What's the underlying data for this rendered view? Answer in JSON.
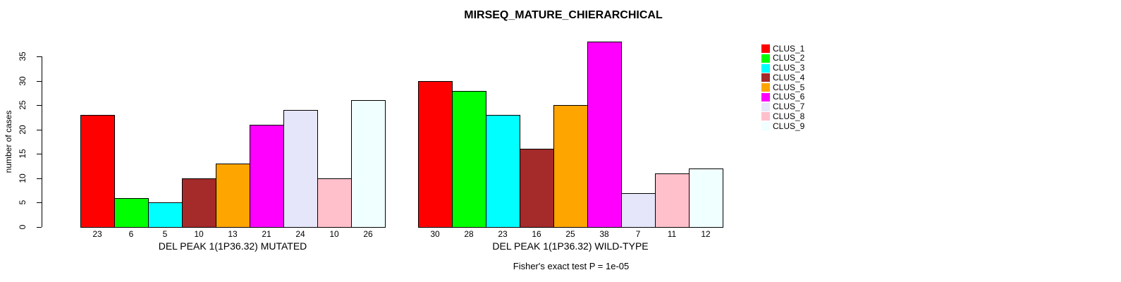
{
  "chart_data": {
    "type": "bar",
    "title": "MIRSEQ_MATURE_CHIERARCHICAL",
    "ylabel": "number of cases",
    "ylim": [
      0,
      38
    ],
    "yticks": [
      0,
      5,
      10,
      15,
      20,
      25,
      30,
      35
    ],
    "grid": false,
    "legend_position": "top-right",
    "categories": [
      "DEL PEAK 1(1P36.32) MUTATED",
      "DEL PEAK 1(1P36.32) WILD-TYPE"
    ],
    "series": [
      {
        "name": "CLUS_1",
        "color": "#FF0000",
        "values": [
          23,
          30
        ]
      },
      {
        "name": "CLUS_2",
        "color": "#00FF00",
        "values": [
          6,
          28
        ]
      },
      {
        "name": "CLUS_3",
        "color": "#00FFFF",
        "values": [
          5,
          23
        ]
      },
      {
        "name": "CLUS_4",
        "color": "#A52A2A",
        "values": [
          10,
          16
        ]
      },
      {
        "name": "CLUS_5",
        "color": "#FFA500",
        "values": [
          13,
          25
        ]
      },
      {
        "name": "CLUS_6",
        "color": "#FF00FF",
        "values": [
          21,
          38
        ]
      },
      {
        "name": "CLUS_7",
        "color": "#E6E6FA",
        "values": [
          24,
          7
        ]
      },
      {
        "name": "CLUS_8",
        "color": "#FFC0CB",
        "values": [
          10,
          11
        ]
      },
      {
        "name": "CLUS_9",
        "color": "#F0FFFF",
        "values": [
          26,
          12
        ]
      }
    ],
    "annotation": "Fisher's exact test P = 1e-05"
  }
}
